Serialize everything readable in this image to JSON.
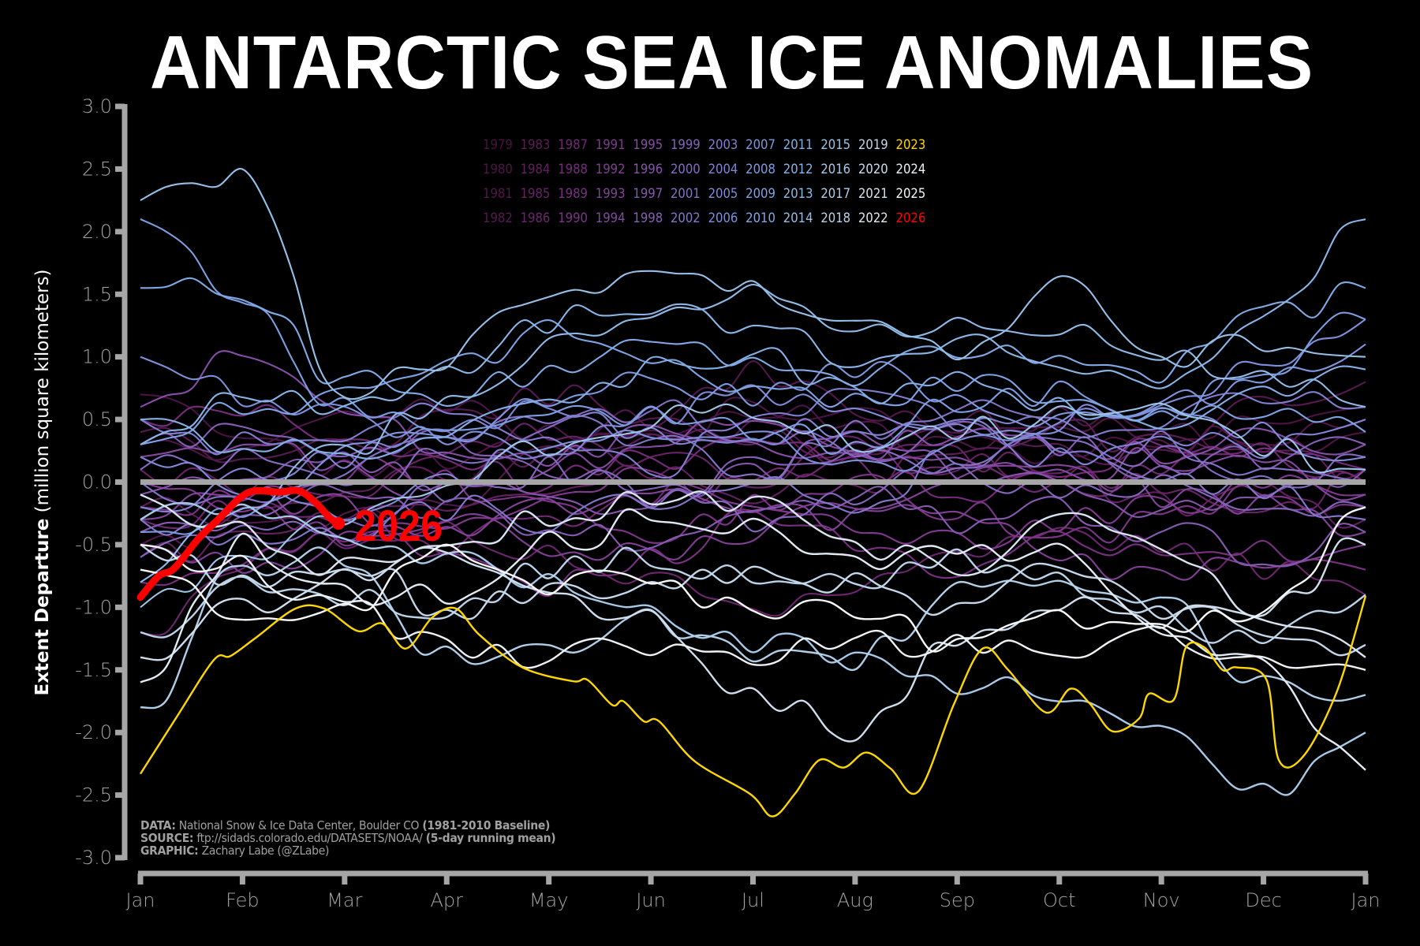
{
  "chart_data": {
    "type": "line",
    "title": "ANTARCTIC SEA ICE ANOMALIES",
    "xlabel": "",
    "ylabel_bold": "Extent Departure",
    "ylabel_rest": "(million square kilometers)",
    "ylim": [
      -3.0,
      3.0
    ],
    "yticks": [
      "3.0",
      "2.5",
      "2.0",
      "1.5",
      "1.0",
      "0.5",
      "0.0",
      "-0.5",
      "-1.0",
      "-1.5",
      "-2.0",
      "-2.5",
      "-3.0"
    ],
    "ytick_values": [
      3.0,
      2.5,
      2.0,
      1.5,
      1.0,
      0.5,
      0.0,
      -0.5,
      -1.0,
      -1.5,
      -2.0,
      -2.5,
      -3.0
    ],
    "xticks": [
      "Jan",
      "Feb",
      "Mar",
      "Apr",
      "May",
      "Jun",
      "Jul",
      "Aug",
      "Sep",
      "Oct",
      "Nov",
      "Dec",
      "Jan"
    ],
    "x_unit": "month (0 = Jan 1, 12 = following Jan 1)",
    "reference_line": {
      "value": 0.0,
      "color": "#a6a6a6"
    },
    "grid": false,
    "legend_placement": "top-center",
    "legend_rows": [
      [
        "1979",
        "1983",
        "1987",
        "1991",
        "1995",
        "1999",
        "2003",
        "2007",
        "2011",
        "2015",
        "2019",
        "2023"
      ],
      [
        "1980",
        "1984",
        "1988",
        "1992",
        "1996",
        "2000",
        "2004",
        "2008",
        "2012",
        "2016",
        "2020",
        "2024"
      ],
      [
        "1981",
        "1985",
        "1989",
        "1993",
        "1997",
        "2001",
        "2005",
        "2009",
        "2013",
        "2017",
        "2021",
        "2025"
      ],
      [
        "1982",
        "1986",
        "1990",
        "1994",
        "1998",
        "2002",
        "2006",
        "2010",
        "2014",
        "2018",
        "2022",
        "2026"
      ]
    ],
    "year_colors": {
      "1979": "#4a1343",
      "1980": "#4e1547",
      "1981": "#52174b",
      "1982": "#561a50",
      "1983": "#5c1d58",
      "1984": "#62205f",
      "1985": "#672366",
      "1986": "#6c266d",
      "1987": "#712974",
      "1988": "#762c7b",
      "1989": "#7a3082",
      "1990": "#7d3489",
      "1991": "#80398f",
      "1992": "#823e95",
      "1993": "#84439b",
      "1994": "#8548a1",
      "1995": "#864ea7",
      "1996": "#8654ad",
      "1997": "#865ab2",
      "1998": "#8660b8",
      "1999": "#8566bd",
      "2000": "#846cc2",
      "2001": "#8472c7",
      "2002": "#8378cb",
      "2003": "#827ecf",
      "2004": "#8184d3",
      "2005": "#808ad7",
      "2006": "#7f90db",
      "2007": "#7e97de",
      "2008": "#7d9de1",
      "2009": "#7ea3e3",
      "2010": "#80a9e5",
      "2011": "#84afe6",
      "2012": "#89b5e7",
      "2013": "#8fbae8",
      "2014": "#96bfe8",
      "2015": "#9ec4e8",
      "2016": "#a7c9e8",
      "2017": "#b0cee8",
      "2018": "#bad3e9",
      "2019": "#c4d8ea",
      "2020": "#cedeed",
      "2021": "#d8e4f0",
      "2022": "#e2eaf3",
      "2023": "#ffd700",
      "2024": "#eef2f6",
      "2025": "#f6f8fa",
      "2026": "#ff0000"
    },
    "series_note": "Monthly-node anomaly readings (approximate, million km²) at x = 0..12; 2023 and 2026 read at finer resolution.",
    "series": [
      {
        "name": "1979",
        "values": [
          0.7,
          0.3,
          0.1,
          0.2,
          0.3,
          0.4,
          0.5,
          0.6,
          0.3,
          0.2,
          0.3,
          0.5,
          0.6
        ]
      },
      {
        "name": "1980",
        "values": [
          0.3,
          0.2,
          0.5,
          0.6,
          0.4,
          0.3,
          0.6,
          0.4,
          0.3,
          0.5,
          0.4,
          0.3,
          0.4
        ]
      },
      {
        "name": "1981",
        "values": [
          -0.5,
          -0.4,
          -0.3,
          -0.2,
          0.3,
          0.5,
          0.9,
          0.6,
          0.4,
          0.5,
          0.3,
          0.4,
          0.5
        ]
      },
      {
        "name": "1982",
        "values": [
          0.4,
          0.1,
          0.3,
          0.5,
          0.7,
          0.5,
          0.4,
          0.2,
          0.5,
          0.3,
          0.2,
          0.6,
          0.8
        ]
      },
      {
        "name": "1983",
        "values": [
          -0.2,
          -0.3,
          -0.1,
          0.1,
          0.2,
          0.3,
          0.4,
          0.2,
          0.3,
          0.4,
          0.3,
          0.2,
          0.1
        ]
      },
      {
        "name": "1984",
        "values": [
          -0.6,
          -0.5,
          -0.3,
          -0.2,
          -0.1,
          0.1,
          -0.1,
          0.0,
          0.2,
          0.1,
          -0.2,
          0.0,
          -0.3
        ]
      },
      {
        "name": "1985",
        "values": [
          0.1,
          0.0,
          -0.1,
          0.2,
          0.4,
          0.2,
          0.0,
          0.3,
          0.2,
          0.1,
          0.0,
          -0.2,
          0.0
        ]
      },
      {
        "name": "1986",
        "values": [
          -1.2,
          -0.6,
          -0.5,
          -0.4,
          -0.6,
          -0.8,
          -1.0,
          -0.8,
          -0.6,
          -0.4,
          -0.5,
          -0.7,
          -0.9
        ]
      },
      {
        "name": "1987",
        "values": [
          -0.3,
          -0.2,
          -0.3,
          -0.5,
          -0.3,
          -0.1,
          0.0,
          0.2,
          0.1,
          -0.1,
          0.1,
          0.2,
          0.0
        ]
      },
      {
        "name": "1988",
        "values": [
          0.5,
          0.6,
          0.4,
          0.2,
          0.0,
          0.2,
          0.3,
          0.1,
          -0.1,
          0.1,
          0.3,
          0.2,
          0.1
        ]
      },
      {
        "name": "1989",
        "values": [
          -0.8,
          -0.6,
          -0.4,
          -0.6,
          -0.8,
          -0.6,
          -0.3,
          -0.5,
          -0.7,
          -0.4,
          -0.6,
          -0.5,
          -0.7
        ]
      },
      {
        "name": "1990",
        "values": [
          -0.2,
          -0.1,
          0.1,
          0.0,
          -0.2,
          -0.4,
          -0.2,
          0.0,
          -0.2,
          -0.5,
          -0.3,
          -0.1,
          -0.2
        ]
      },
      {
        "name": "1991",
        "values": [
          0.0,
          -0.2,
          -0.4,
          -0.3,
          -0.1,
          0.1,
          -0.1,
          -0.3,
          -0.5,
          -0.3,
          -0.2,
          0.0,
          -0.1
        ]
      },
      {
        "name": "1992",
        "values": [
          -0.5,
          -0.7,
          -0.5,
          -0.3,
          -0.5,
          -0.6,
          -0.4,
          -0.2,
          -0.3,
          -0.6,
          -0.8,
          -0.6,
          -0.5
        ]
      },
      {
        "name": "1993",
        "values": [
          -0.3,
          -0.1,
          -0.2,
          -0.4,
          -0.2,
          0.0,
          -0.2,
          -0.3,
          0.0,
          0.1,
          -0.1,
          -0.2,
          -0.4
        ]
      },
      {
        "name": "1994",
        "values": [
          0.2,
          0.3,
          0.1,
          -0.1,
          0.1,
          0.3,
          0.5,
          0.3,
          0.2,
          0.0,
          0.2,
          0.1,
          -0.1
        ]
      },
      {
        "name": "1995",
        "values": [
          0.6,
          1.0,
          0.5,
          0.3,
          0.2,
          0.4,
          0.3,
          0.2,
          0.4,
          0.3,
          0.2,
          0.4,
          0.3
        ]
      },
      {
        "name": "1996",
        "values": [
          -0.1,
          0.0,
          0.2,
          0.0,
          -0.2,
          -0.1,
          0.1,
          0.3,
          0.1,
          0.0,
          -0.2,
          -0.1,
          0.1
        ]
      },
      {
        "name": "1997",
        "values": [
          -0.4,
          -0.3,
          -0.1,
          -0.2,
          -0.4,
          -0.5,
          -0.3,
          -0.1,
          -0.3,
          -0.2,
          -0.4,
          -0.6,
          -0.4
        ]
      },
      {
        "name": "1998",
        "values": [
          0.3,
          0.4,
          0.2,
          0.3,
          0.1,
          -0.1,
          0.1,
          0.2,
          0.4,
          0.3,
          0.1,
          0.2,
          0.3
        ]
      },
      {
        "name": "1999",
        "values": [
          -0.6,
          -0.4,
          -0.3,
          -0.1,
          0.1,
          -0.1,
          -0.3,
          -0.1,
          0.1,
          -0.1,
          0.0,
          -0.3,
          -0.2
        ]
      },
      {
        "name": "2000",
        "values": [
          0.1,
          0.2,
          0.0,
          0.2,
          0.4,
          0.6,
          0.4,
          0.2,
          0.1,
          0.3,
          0.2,
          0.0,
          0.2
        ]
      },
      {
        "name": "2001",
        "values": [
          0.0,
          -0.2,
          0.1,
          0.3,
          0.5,
          0.3,
          0.1,
          0.4,
          0.6,
          0.4,
          0.3,
          0.1,
          0.0
        ]
      },
      {
        "name": "2002",
        "values": [
          -0.3,
          -0.5,
          -0.4,
          -0.2,
          -0.3,
          -0.1,
          0.0,
          -0.2,
          0.2,
          0.3,
          0.1,
          -0.1,
          -0.3
        ]
      },
      {
        "name": "2003",
        "values": [
          0.5,
          0.3,
          0.4,
          0.6,
          0.3,
          0.1,
          0.5,
          0.7,
          0.5,
          0.4,
          0.5,
          0.7,
          0.6
        ]
      },
      {
        "name": "2004",
        "values": [
          -0.2,
          0.0,
          0.2,
          0.4,
          0.6,
          0.4,
          0.3,
          0.5,
          0.4,
          0.2,
          0.4,
          0.3,
          0.5
        ]
      },
      {
        "name": "2005",
        "values": [
          0.2,
          0.0,
          -0.2,
          0.0,
          0.3,
          0.5,
          0.7,
          0.6,
          0.4,
          0.5,
          0.6,
          0.4,
          0.2
        ]
      },
      {
        "name": "2006",
        "values": [
          1.0,
          0.7,
          0.5,
          0.4,
          0.2,
          0.4,
          0.3,
          0.1,
          0.3,
          0.5,
          0.6,
          0.9,
          1.3
        ]
      },
      {
        "name": "2007",
        "values": [
          -0.4,
          -0.2,
          0.2,
          0.4,
          0.6,
          0.8,
          0.7,
          0.9,
          0.7,
          0.5,
          0.6,
          0.8,
          1.1
        ]
      },
      {
        "name": "2008",
        "values": [
          2.1,
          1.5,
          0.6,
          0.4,
          0.6,
          0.5,
          0.4,
          0.3,
          0.6,
          0.7,
          0.5,
          0.9,
          1.3
        ]
      },
      {
        "name": "2009",
        "values": [
          0.3,
          0.6,
          0.7,
          0.9,
          1.2,
          1.0,
          0.8,
          0.6,
          0.8,
          0.7,
          0.5,
          0.6,
          0.4
        ]
      },
      {
        "name": "2010",
        "values": [
          1.55,
          1.5,
          0.8,
          0.7,
          0.9,
          1.1,
          1.0,
          0.8,
          1.1,
          1.0,
          0.9,
          1.3,
          1.55
        ]
      },
      {
        "name": "2011",
        "values": [
          0.5,
          0.3,
          0.2,
          0.4,
          0.7,
          0.9,
          1.0,
          0.7,
          0.8,
          0.6,
          0.5,
          0.7,
          0.9
        ]
      },
      {
        "name": "2012",
        "values": [
          0.3,
          0.7,
          0.6,
          0.9,
          1.3,
          1.4,
          1.2,
          1.0,
          1.1,
          1.0,
          0.8,
          1.3,
          2.1
        ]
      },
      {
        "name": "2013",
        "values": [
          -0.8,
          -0.2,
          0.3,
          0.6,
          1.1,
          1.3,
          1.5,
          1.2,
          1.3,
          1.2,
          1.0,
          0.9,
          0.6
        ]
      },
      {
        "name": "2014",
        "values": [
          2.25,
          2.5,
          0.7,
          1.0,
          1.5,
          1.6,
          1.5,
          1.2,
          1.0,
          1.6,
          1.0,
          1.1,
          1.0
        ]
      },
      {
        "name": "2015",
        "values": [
          -1.0,
          -0.6,
          -0.3,
          0.0,
          0.3,
          0.5,
          0.6,
          0.3,
          0.4,
          0.5,
          0.6,
          0.3,
          0.1
        ]
      },
      {
        "name": "2016",
        "values": [
          -0.3,
          -0.2,
          -0.4,
          -0.6,
          -0.8,
          -1.0,
          -1.3,
          -1.4,
          -1.6,
          -1.7,
          -2.0,
          -2.5,
          -2.0
        ]
      },
      {
        "name": "2017",
        "values": [
          -1.8,
          -0.7,
          -0.6,
          -1.4,
          -1.3,
          -1.1,
          -1.4,
          -1.4,
          -0.9,
          -0.8,
          -1.0,
          -1.6,
          -1.7
        ]
      },
      {
        "name": "2018",
        "values": [
          -1.2,
          -0.8,
          -0.9,
          -1.0,
          -0.7,
          -0.6,
          -0.8,
          -0.8,
          -0.6,
          -0.8,
          -1.1,
          -1.3,
          -0.9
        ]
      },
      {
        "name": "2019",
        "values": [
          -0.5,
          -0.8,
          -0.6,
          -1.0,
          -0.9,
          -0.8,
          -0.7,
          -0.8,
          -1.0,
          -0.6,
          -1.0,
          -1.2,
          -1.3
        ]
      },
      {
        "name": "2020",
        "values": [
          -1.4,
          -1.0,
          -0.8,
          -0.6,
          -0.9,
          -1.1,
          -1.7,
          -2.0,
          -1.3,
          -1.0,
          -1.1,
          -1.0,
          -0.5
        ]
      },
      {
        "name": "2021",
        "values": [
          -0.1,
          -0.4,
          -0.7,
          -0.6,
          -0.3,
          -0.1,
          -0.2,
          -0.5,
          -0.7,
          -0.3,
          -0.5,
          -1.0,
          -1.4
        ]
      },
      {
        "name": "2022",
        "values": [
          -1.6,
          -0.5,
          -0.9,
          -0.9,
          -0.5,
          -0.3,
          -0.4,
          -0.7,
          -0.5,
          -0.6,
          -1.2,
          -1.5,
          -2.3
        ]
      },
      {
        "name": "2023",
        "values": [
          -2.33,
          -1.4,
          -1.01,
          -1.35,
          -1.55,
          -1.91,
          -2.49,
          -2.16,
          -1.33,
          -1.84,
          -1.74,
          -1.48,
          -0.91
        ]
      },
      {
        "name": "2024",
        "values": [
          -0.5,
          -0.7,
          -1.0,
          -1.3,
          -1.4,
          -1.3,
          -1.4,
          -1.3,
          -1.3,
          -1.4,
          -1.2,
          -1.4,
          -1.5
        ]
      },
      {
        "name": "2025",
        "values": [
          -0.7,
          -1.0,
          -1.0,
          -0.6,
          -0.8,
          -0.8,
          -1.0,
          -1.0,
          -1.3,
          -1.1,
          -1.2,
          -1.0,
          -0.2
        ]
      }
    ],
    "series_2023_detail": {
      "x": [
        0,
        0.36,
        0.72,
        0.88,
        1.12,
        1.52,
        1.8,
        2.13,
        2.37,
        2.6,
        2.86,
        3.09,
        3.32,
        3.74,
        4.23,
        4.38,
        4.62,
        4.73,
        4.93,
        5.08,
        5.43,
        5.97,
        6.19,
        6.41,
        6.65,
        6.89,
        7.11,
        7.35,
        7.62,
        7.97,
        8.25,
        8.5,
        8.87,
        9.11,
        9.3,
        9.52,
        9.78,
        9.88,
        10.12,
        10.24,
        10.42,
        10.6,
        10.74,
        11.03,
        11.15,
        11.39,
        11.72,
        12.0
      ],
      "y": [
        -2.33,
        -1.87,
        -1.42,
        -1.39,
        -1.25,
        -1.01,
        -1.01,
        -1.19,
        -1.13,
        -1.33,
        -1.08,
        -1.01,
        -1.22,
        -1.48,
        -1.59,
        -1.58,
        -1.78,
        -1.75,
        -1.91,
        -1.91,
        -2.23,
        -2.49,
        -2.67,
        -2.49,
        -2.22,
        -2.28,
        -2.16,
        -2.29,
        -2.47,
        -1.77,
        -1.33,
        -1.5,
        -1.84,
        -1.65,
        -1.77,
        -1.99,
        -1.89,
        -1.69,
        -1.74,
        -1.32,
        -1.32,
        -1.5,
        -1.48,
        -1.58,
        -2.22,
        -2.19,
        -1.67,
        -0.91
      ]
    },
    "series_2026_detail": {
      "x": [
        0.0,
        0.18,
        0.33,
        0.57,
        0.76,
        0.97,
        1.12,
        1.36,
        1.55,
        1.71,
        1.86,
        1.94
      ],
      "y": [
        -0.92,
        -0.75,
        -0.69,
        -0.45,
        -0.3,
        -0.13,
        -0.07,
        -0.08,
        -0.07,
        -0.16,
        -0.29,
        -0.33
      ]
    },
    "annotations": [
      {
        "text": "2026",
        "color": "#ff0000",
        "anchor": "end of 2026 line"
      }
    ],
    "credits": [
      {
        "label": "DATA:",
        "text": " National Snow & Ice Data Center, Boulder CO ",
        "bold_suffix": "(1981-2010 Baseline)"
      },
      {
        "label": "SOURCE:",
        "text": " ftp://sidads.colorado.edu/DATASETS/NOAA/ ",
        "bold_suffix": "(5-day running mean)"
      },
      {
        "label": "GRAPHIC:",
        "text": " Zachary Labe (@ZLabe)",
        "bold_suffix": ""
      }
    ]
  }
}
